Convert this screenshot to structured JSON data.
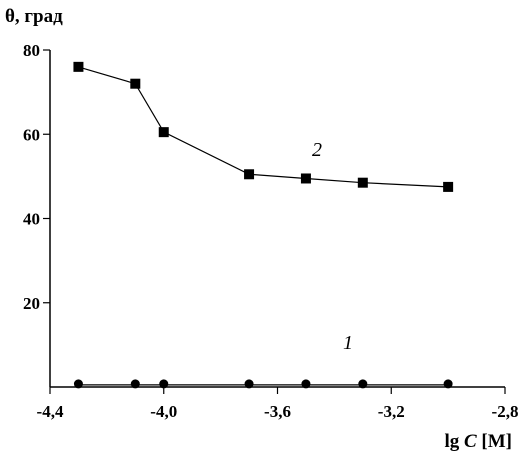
{
  "chart_data": {
    "type": "line",
    "title": "",
    "ylabel": "θ, град",
    "xlabel_prefix": "lg ",
    "xlabel_var": "C",
    "xlabel_unit": " [M]",
    "xlim": [
      -4.4,
      -2.8
    ],
    "ylim": [
      0,
      80
    ],
    "xticks": [
      -4.4,
      -4.0,
      -3.6,
      -3.2,
      -2.8
    ],
    "xtick_labels": [
      "-4,4",
      "-4,0",
      "-3,6",
      "-3,2",
      "-2,8"
    ],
    "yticks": [
      20,
      40,
      60,
      80
    ],
    "ytick_labels": [
      "20",
      "40",
      "60",
      "80"
    ],
    "grid": false,
    "series": [
      {
        "name": "1",
        "marker": "circle",
        "x": [
          -4.3,
          -4.1,
          -4.0,
          -3.7,
          -3.5,
          -3.3,
          -3.0
        ],
        "y": [
          0.5,
          0.5,
          0.5,
          0.5,
          0.5,
          0.5,
          0.5
        ]
      },
      {
        "name": "2",
        "marker": "square",
        "x": [
          -4.3,
          -4.1,
          -4.0,
          -3.7,
          -3.5,
          -3.3,
          -3.0
        ],
        "y": [
          76,
          72,
          60.5,
          50.5,
          49.5,
          48.5,
          47.5
        ]
      }
    ]
  },
  "colors": {
    "ink": "#000000",
    "background": "#ffffff"
  }
}
